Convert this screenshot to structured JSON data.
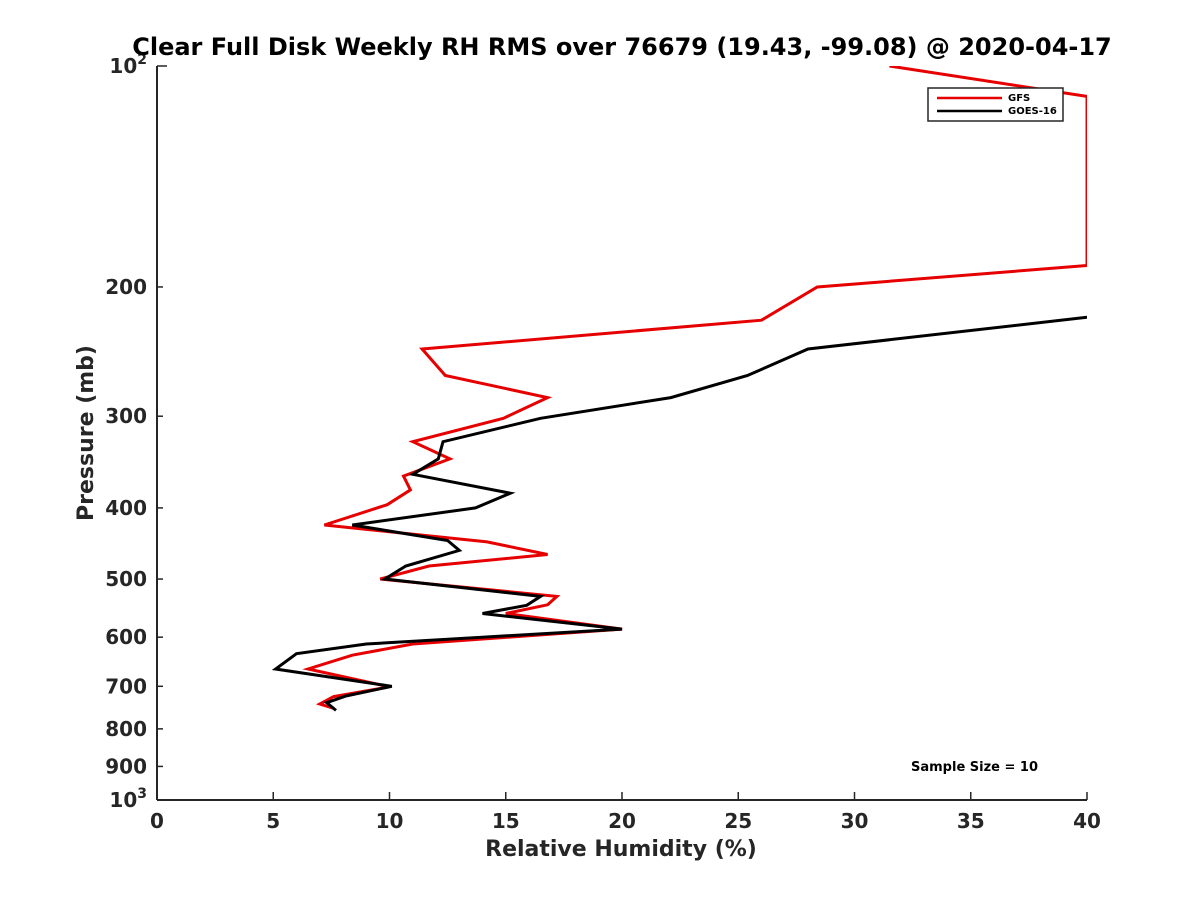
{
  "chart_data": {
    "type": "line",
    "title": "Clear Full Disk Weekly RH RMS over 76679 (19.43, -99.08) @ 2020-04-17",
    "xlabel": "Relative Humidity (%)",
    "ylabel": "Pressure (mb)",
    "xlim": [
      0,
      40
    ],
    "ylim": [
      100,
      1000
    ],
    "y_scale": "log",
    "y_reversed": true,
    "grid": false,
    "legend_position": "top-right",
    "x_ticks": [
      "0",
      "5",
      "10",
      "15",
      "20",
      "25",
      "30",
      "35",
      "40"
    ],
    "y_ticks": [
      {
        "value": 100,
        "base": "10",
        "exp": "2"
      },
      {
        "value": 200,
        "label": "200"
      },
      {
        "value": 300,
        "label": "300"
      },
      {
        "value": 400,
        "label": "400"
      },
      {
        "value": 500,
        "label": "500"
      },
      {
        "value": 600,
        "label": "600"
      },
      {
        "value": 700,
        "label": "700"
      },
      {
        "value": 800,
        "label": "800"
      },
      {
        "value": 900,
        "label": "900"
      },
      {
        "value": 1000,
        "base": "10",
        "exp": "3"
      }
    ],
    "annotation": "Sample Size = 10",
    "series": [
      {
        "name": "GFS",
        "color": "#e60000",
        "points": [
          [
            31.5,
            100
          ],
          [
            40.0,
            110
          ],
          [
            40.0,
            187
          ],
          [
            28.4,
            200
          ],
          [
            26.0,
            222
          ],
          [
            11.4,
            243
          ],
          [
            12.4,
            264
          ],
          [
            16.8,
            283
          ],
          [
            14.9,
            302
          ],
          [
            11.0,
            325
          ],
          [
            12.6,
            343
          ],
          [
            10.6,
            362
          ],
          [
            10.9,
            378
          ],
          [
            9.9,
            396
          ],
          [
            7.2,
            422
          ],
          [
            14.2,
            445
          ],
          [
            16.8,
            463
          ],
          [
            11.7,
            480
          ],
          [
            9.6,
            500
          ],
          [
            17.2,
            528
          ],
          [
            16.8,
            542
          ],
          [
            15.0,
            557
          ],
          [
            20.0,
            585
          ],
          [
            11.0,
            613
          ],
          [
            8.4,
            635
          ],
          [
            6.5,
            663
          ],
          [
            10.0,
            701
          ],
          [
            7.6,
            723
          ],
          [
            7.0,
            740
          ],
          [
            7.6,
            750
          ]
        ]
      },
      {
        "name": "GOES-16",
        "color": "#000000",
        "points": [
          [
            40.0,
            220
          ],
          [
            28.0,
            243
          ],
          [
            25.4,
            264
          ],
          [
            22.1,
            283
          ],
          [
            16.5,
            302
          ],
          [
            12.3,
            325
          ],
          [
            12.1,
            343
          ],
          [
            11.0,
            360
          ],
          [
            15.2,
            382
          ],
          [
            13.7,
            400
          ],
          [
            8.4,
            422
          ],
          [
            12.5,
            443
          ],
          [
            13.0,
            457
          ],
          [
            10.7,
            480
          ],
          [
            9.8,
            500
          ],
          [
            16.5,
            528
          ],
          [
            15.9,
            543
          ],
          [
            14.0,
            557
          ],
          [
            20.0,
            585
          ],
          [
            9.0,
            613
          ],
          [
            6.0,
            632
          ],
          [
            5.1,
            663
          ],
          [
            10.1,
            700
          ],
          [
            8.1,
            722
          ],
          [
            7.3,
            737
          ],
          [
            7.7,
            755
          ]
        ]
      }
    ]
  }
}
